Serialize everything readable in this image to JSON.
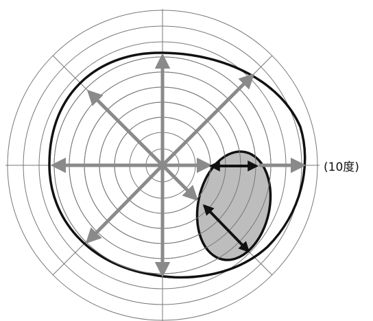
{
  "annotation": "(10度)",
  "colors": {
    "grid": "#777777",
    "arrows": "#8a8a8a",
    "outline": "#111111",
    "blind_spot_fill": "#bdbdbd"
  }
}
